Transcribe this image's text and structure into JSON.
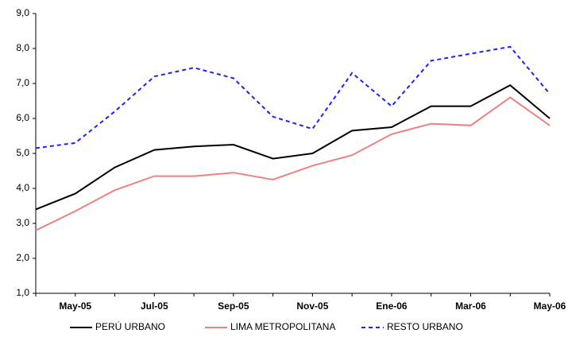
{
  "chart_data": {
    "type": "line",
    "categories": [
      null,
      "May-05",
      null,
      "Jul-05",
      null,
      "Sep-05",
      null,
      "Nov-05",
      null,
      "Ene-06",
      null,
      "Mar-06",
      null,
      "May-06"
    ],
    "series": [
      {
        "name": "PERÚ URBANO",
        "color": "#000000",
        "dashed": false,
        "values": [
          3.4,
          3.85,
          4.6,
          5.1,
          5.2,
          5.25,
          4.85,
          5.0,
          5.65,
          5.75,
          6.35,
          6.35,
          6.95,
          6.0
        ]
      },
      {
        "name": "LIMA METROPOLITANA",
        "color": "#f08080",
        "dashed": false,
        "values": [
          2.8,
          3.35,
          3.95,
          4.35,
          4.35,
          4.45,
          4.25,
          4.65,
          4.95,
          5.55,
          5.85,
          5.8,
          6.6,
          5.8
        ]
      },
      {
        "name": "RESTO URBANO",
        "color": "#1f1fff",
        "dashed": true,
        "values": [
          5.15,
          5.3,
          6.2,
          7.2,
          7.45,
          7.15,
          6.05,
          5.7,
          7.3,
          6.35,
          7.65,
          7.85,
          8.05,
          6.7
        ]
      }
    ],
    "ylim": [
      1,
      9
    ],
    "yticks": [
      {
        "value": 1,
        "label": "1,0"
      },
      {
        "value": 2,
        "label": "2,0"
      },
      {
        "value": 3,
        "label": "3,0"
      },
      {
        "value": 4,
        "label": "4,0"
      },
      {
        "value": 5,
        "label": "5,0"
      },
      {
        "value": 6,
        "label": "6,0"
      },
      {
        "value": 7,
        "label": "7,0"
      },
      {
        "value": 8,
        "label": "8,0"
      },
      {
        "value": 9,
        "label": "9,0"
      }
    ],
    "grid": false,
    "legend": "bottom"
  }
}
